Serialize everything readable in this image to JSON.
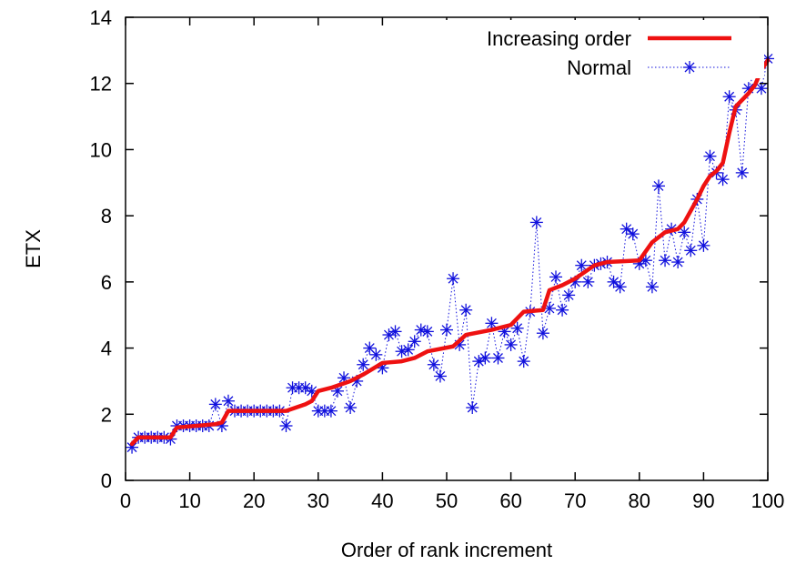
{
  "chart_data": {
    "type": "line",
    "title": "",
    "xlabel": "Order of rank increment",
    "ylabel": "ETX",
    "xlim": [
      0,
      100
    ],
    "ylim": [
      0,
      14
    ],
    "xticks": [
      0,
      10,
      20,
      30,
      40,
      50,
      60,
      70,
      80,
      90,
      100
    ],
    "yticks": [
      0,
      2,
      4,
      6,
      8,
      10,
      12,
      14
    ],
    "grid": false,
    "legend_position": "top-right",
    "series": [
      {
        "name": "Increasing order",
        "color": "#ee1111",
        "style": "solid thick line",
        "points": [
          [
            1,
            1.1
          ],
          [
            2,
            1.3
          ],
          [
            7,
            1.3
          ],
          [
            8,
            1.6
          ],
          [
            14,
            1.7
          ],
          [
            15,
            1.75
          ],
          [
            16,
            2.1
          ],
          [
            25,
            2.1
          ],
          [
            28,
            2.3
          ],
          [
            29,
            2.4
          ],
          [
            30,
            2.7
          ],
          [
            32,
            2.8
          ],
          [
            35,
            3.0
          ],
          [
            37,
            3.2
          ],
          [
            40,
            3.55
          ],
          [
            43,
            3.6
          ],
          [
            45,
            3.7
          ],
          [
            47,
            3.9
          ],
          [
            51,
            4.05
          ],
          [
            53,
            4.4
          ],
          [
            57,
            4.55
          ],
          [
            60,
            4.7
          ],
          [
            62,
            5.1
          ],
          [
            65,
            5.15
          ],
          [
            66,
            5.75
          ],
          [
            68,
            5.9
          ],
          [
            70,
            6.1
          ],
          [
            73,
            6.5
          ],
          [
            75,
            6.6
          ],
          [
            80,
            6.65
          ],
          [
            82,
            7.2
          ],
          [
            84,
            7.5
          ],
          [
            86,
            7.6
          ],
          [
            87,
            7.8
          ],
          [
            89,
            8.5
          ],
          [
            90,
            8.9
          ],
          [
            91,
            9.2
          ],
          [
            92,
            9.35
          ],
          [
            93,
            9.6
          ],
          [
            94,
            10.5
          ],
          [
            95,
            11.3
          ],
          [
            97,
            11.7
          ],
          [
            98,
            11.95
          ],
          [
            99,
            12.4
          ],
          [
            100,
            12.7
          ]
        ]
      },
      {
        "name": "Normal",
        "color": "#1111dd",
        "style": "dotted line with star markers",
        "points": [
          [
            1,
            1.0
          ],
          [
            2,
            1.3
          ],
          [
            3,
            1.3
          ],
          [
            4,
            1.3
          ],
          [
            5,
            1.3
          ],
          [
            6,
            1.3
          ],
          [
            7,
            1.25
          ],
          [
            8,
            1.65
          ],
          [
            9,
            1.65
          ],
          [
            10,
            1.65
          ],
          [
            11,
            1.65
          ],
          [
            12,
            1.65
          ],
          [
            13,
            1.65
          ],
          [
            14,
            2.3
          ],
          [
            15,
            1.65
          ],
          [
            16,
            2.4
          ],
          [
            17,
            2.1
          ],
          [
            18,
            2.1
          ],
          [
            19,
            2.1
          ],
          [
            20,
            2.1
          ],
          [
            21,
            2.1
          ],
          [
            22,
            2.1
          ],
          [
            23,
            2.1
          ],
          [
            24,
            2.1
          ],
          [
            25,
            1.65
          ],
          [
            26,
            2.8
          ],
          [
            27,
            2.8
          ],
          [
            28,
            2.8
          ],
          [
            29,
            2.7
          ],
          [
            30,
            2.1
          ],
          [
            31,
            2.1
          ],
          [
            32,
            2.1
          ],
          [
            33,
            2.7
          ],
          [
            34,
            3.1
          ],
          [
            35,
            2.2
          ],
          [
            36,
            3.0
          ],
          [
            37,
            3.5
          ],
          [
            38,
            4.0
          ],
          [
            39,
            3.8
          ],
          [
            40,
            3.4
          ],
          [
            41,
            4.4
          ],
          [
            42,
            4.5
          ],
          [
            43,
            3.9
          ],
          [
            44,
            3.95
          ],
          [
            45,
            4.2
          ],
          [
            46,
            4.55
          ],
          [
            47,
            4.5
          ],
          [
            48,
            3.5
          ],
          [
            49,
            3.15
          ],
          [
            50,
            4.55
          ],
          [
            51,
            6.1
          ],
          [
            52,
            4.1
          ],
          [
            53,
            5.15
          ],
          [
            54,
            2.2
          ],
          [
            55,
            3.6
          ],
          [
            56,
            3.7
          ],
          [
            57,
            4.75
          ],
          [
            58,
            3.7
          ],
          [
            59,
            4.5
          ],
          [
            60,
            4.1
          ],
          [
            61,
            4.6
          ],
          [
            62,
            3.6
          ],
          [
            63,
            5.1
          ],
          [
            64,
            7.8
          ],
          [
            65,
            4.45
          ],
          [
            66,
            5.2
          ],
          [
            67,
            6.15
          ],
          [
            68,
            5.15
          ],
          [
            69,
            5.6
          ],
          [
            70,
            6.0
          ],
          [
            71,
            6.5
          ],
          [
            72,
            6.0
          ],
          [
            73,
            6.5
          ],
          [
            74,
            6.55
          ],
          [
            75,
            6.6
          ],
          [
            76,
            6.0
          ],
          [
            77,
            5.85
          ],
          [
            78,
            7.6
          ],
          [
            79,
            7.45
          ],
          [
            80,
            6.55
          ],
          [
            81,
            6.65
          ],
          [
            82,
            5.85
          ],
          [
            83,
            8.9
          ],
          [
            84,
            6.65
          ],
          [
            85,
            7.6
          ],
          [
            86,
            6.6
          ],
          [
            87,
            7.5
          ],
          [
            88,
            6.95
          ],
          [
            89,
            8.5
          ],
          [
            90,
            7.1
          ],
          [
            91,
            9.8
          ],
          [
            92,
            9.3
          ],
          [
            93,
            9.1
          ],
          [
            94,
            11.6
          ],
          [
            95,
            11.2
          ],
          [
            96,
            9.3
          ],
          [
            97,
            11.85
          ],
          [
            98,
            12.4
          ],
          [
            99,
            11.85
          ],
          [
            100,
            12.75
          ]
        ]
      }
    ]
  }
}
